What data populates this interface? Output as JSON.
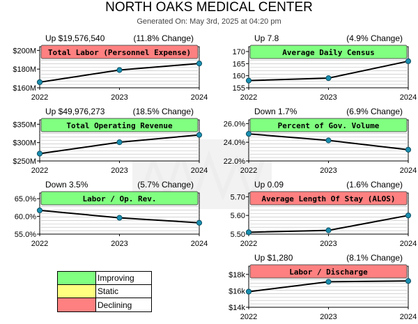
{
  "header": {
    "title": "NORTH OAKS MEDICAL CENTER",
    "generated": "Generated On: May 3rd, 2025 at 04:20 pm"
  },
  "colors": {
    "improving": "#80ff80",
    "static": "#ffff80",
    "declining": "#ff8080",
    "line": "#000000",
    "marker": "#1a8fb0",
    "grid": "#bbbbbb"
  },
  "legend": [
    {
      "label": "Improving",
      "color": "#80ff80"
    },
    {
      "label": "Static",
      "color": "#ffff80"
    },
    {
      "label": "Declining",
      "color": "#ff8080"
    }
  ],
  "chart_data": [
    {
      "type": "line",
      "title": "Total Labor (Personnel Expense)",
      "status": "declining",
      "summary_left": "Up $19,576,540",
      "summary_right": "(11.8% Change)",
      "x": [
        "2022",
        "2023",
        "2024"
      ],
      "values": [
        166000000,
        179000000,
        186000000
      ],
      "ylim": [
        160000000,
        204000000
      ],
      "yticks": [
        160000000,
        180000000,
        200000000
      ],
      "yticklabels": [
        "$160M",
        "$180M",
        "$200M"
      ]
    },
    {
      "type": "line",
      "title": "Average Daily Census",
      "status": "improving",
      "summary_left": "Up 7.8",
      "summary_right": "(4.9% Change)",
      "x": [
        "2022",
        "2023",
        "2024"
      ],
      "values": [
        158,
        159,
        166
      ],
      "ylim": [
        155,
        172
      ],
      "yticks": [
        155,
        160,
        165,
        170
      ],
      "yticklabels": [
        "155",
        "160",
        "165",
        "170"
      ]
    },
    {
      "type": "line",
      "title": "Total Operating Revenue",
      "status": "improving",
      "summary_left": "Up $49,976,273",
      "summary_right": "(18.5% Change)",
      "x": [
        "2022",
        "2023",
        "2024"
      ],
      "values": [
        270000000,
        301000000,
        321000000
      ],
      "ylim": [
        250000000,
        362000000
      ],
      "yticks": [
        250000000,
        300000000,
        350000000
      ],
      "yticklabels": [
        "$250M",
        "$300M",
        "$350M"
      ]
    },
    {
      "type": "line",
      "title": "Percent of Gov. Volume",
      "status": "improving",
      "summary_left": "Down 1.7%",
      "summary_right": "(6.9% Change)",
      "x": [
        "2022",
        "2023",
        "2024"
      ],
      "values": [
        24.9,
        24.2,
        23.2
      ],
      "ylim": [
        22.0,
        26.4
      ],
      "yticks": [
        22.0,
        24.0,
        26.0
      ],
      "yticklabels": [
        "22.0%",
        "24.0%",
        "26.0%"
      ]
    },
    {
      "type": "line",
      "title": "Labor / Op. Rev.",
      "status": "improving",
      "summary_left": "Down 3.5%",
      "summary_right": "(5.7% Change)",
      "x": [
        "2022",
        "2023",
        "2024"
      ],
      "values": [
        61.7,
        59.6,
        58.2
      ],
      "ylim": [
        55.0,
        66.6
      ],
      "yticks": [
        55.0,
        60.0,
        65.0
      ],
      "yticklabels": [
        "55.0%",
        "60.0%",
        "65.0%"
      ]
    },
    {
      "type": "line",
      "title": "Average Length Of Stay (ALOS)",
      "status": "declining",
      "summary_left": "Up 0.09",
      "summary_right": "(1.6% Change)",
      "x": [
        "2022",
        "2023",
        "2024"
      ],
      "values": [
        5.51,
        5.52,
        5.6
      ],
      "ylim": [
        5.5,
        5.72
      ],
      "yticks": [
        5.5,
        5.6,
        5.7
      ],
      "yticklabels": [
        "5.50",
        "5.60",
        "5.70"
      ]
    },
    {
      "type": "line",
      "title": "Labor / Discharge",
      "status": "declining",
      "summary_left": "Up $1,280",
      "summary_right": "(8.1% Change)",
      "x": [
        "2022",
        "2023",
        "2024"
      ],
      "values": [
        15900,
        17100,
        17200
      ],
      "ylim": [
        14000,
        19000
      ],
      "yticks": [
        14000,
        16000,
        18000
      ],
      "yticklabels": [
        "$14k",
        "$16k",
        "$18k"
      ]
    }
  ]
}
